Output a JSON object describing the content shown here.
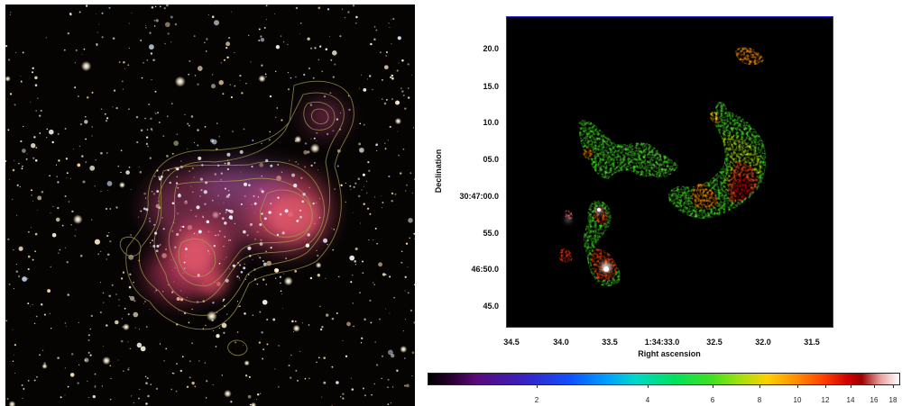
{
  "right_plot": {
    "xlabel": "Right ascension",
    "ylabel": "Declination",
    "x_ticks": [
      "34.5",
      "34.0",
      "33.5",
      "1:34:33.0",
      "32.5",
      "32.0",
      "31.5"
    ],
    "y_ticks": [
      "20.0",
      "15.0",
      "10.0",
      "05.0",
      "30:47:00.0",
      "55.0",
      "46:50.0",
      "45.0"
    ]
  },
  "colorbar": {
    "ticks": [
      "2",
      "4",
      "6",
      "8",
      "10",
      "12",
      "14",
      "16",
      "18"
    ],
    "scale": "log"
  },
  "colors": {
    "frame": "#2a2ad0",
    "nebula_red": "#e0405a",
    "contour": "#a8a050"
  }
}
